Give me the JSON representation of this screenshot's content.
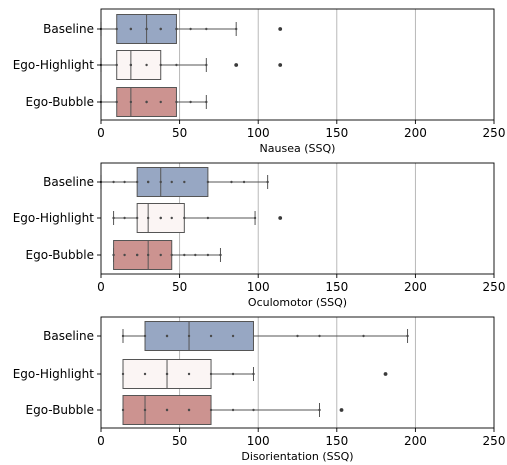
{
  "chart_data": [
    {
      "type": "boxplot",
      "xlabel": "Nausea (SSQ)",
      "xlim": [
        0,
        250
      ],
      "xticks": [
        0,
        50,
        100,
        150,
        200,
        250
      ],
      "grid": "vertical",
      "categories": [
        "Baseline",
        "Ego-Highlight",
        "Ego-Bubble"
      ],
      "boxes": [
        {
          "category": "Baseline",
          "color": "#97a7c3",
          "whisker_low": 0,
          "q1": 10,
          "median": 29,
          "q3": 48,
          "whisker_high": 86,
          "points": [
            0,
            10,
            19,
            19,
            29,
            29,
            38,
            38,
            48,
            48,
            57,
            67,
            86
          ],
          "outliers": [
            114
          ]
        },
        {
          "category": "Ego-Highlight",
          "color": "#fbf5f4",
          "whisker_low": 0,
          "q1": 10,
          "median": 19,
          "q3": 38,
          "whisker_high": 67,
          "points": [
            0,
            10,
            19,
            19,
            29,
            38,
            48,
            67
          ],
          "outliers": [
            86,
            114
          ]
        },
        {
          "category": "Ego-Bubble",
          "color": "#cc9390",
          "whisker_low": 0,
          "q1": 10,
          "median": 19,
          "q3": 48,
          "whisker_high": 67,
          "points": [
            0,
            10,
            19,
            29,
            29,
            38,
            48,
            57,
            67
          ],
          "outliers": []
        }
      ]
    },
    {
      "type": "boxplot",
      "xlabel": "Oculomotor (SSQ)",
      "xlim": [
        0,
        250
      ],
      "xticks": [
        0,
        50,
        100,
        150,
        200,
        250
      ],
      "grid": "vertical",
      "categories": [
        "Baseline",
        "Ego-Highlight",
        "Ego-Bubble"
      ],
      "boxes": [
        {
          "category": "Baseline",
          "color": "#97a7c3",
          "whisker_low": 0,
          "q1": 23,
          "median": 38,
          "q3": 68,
          "whisker_high": 106,
          "points": [
            0,
            8,
            15,
            23,
            30,
            30,
            38,
            45,
            53,
            68,
            83,
            91,
            106
          ],
          "outliers": []
        },
        {
          "category": "Ego-Highlight",
          "color": "#fbf5f4",
          "whisker_low": 8,
          "q1": 23,
          "median": 30,
          "q3": 53,
          "whisker_high": 98,
          "points": [
            8,
            15,
            23,
            30,
            38,
            38,
            45,
            53,
            68,
            98
          ],
          "outliers": [
            114
          ]
        },
        {
          "category": "Ego-Bubble",
          "color": "#cc9390",
          "whisker_low": 8,
          "q1": 8,
          "median": 30,
          "q3": 45,
          "whisker_high": 76,
          "points": [
            8,
            15,
            23,
            23,
            30,
            38,
            45,
            53,
            60,
            68,
            76
          ],
          "outliers": []
        }
      ]
    },
    {
      "type": "boxplot",
      "xlabel": "Disorientation (SSQ)",
      "xlim": [
        0,
        250
      ],
      "xticks": [
        0,
        50,
        100,
        150,
        200,
        250
      ],
      "grid": "vertical",
      "categories": [
        "Baseline",
        "Ego-Highlight",
        "Ego-Bubble"
      ],
      "boxes": [
        {
          "category": "Baseline",
          "color": "#97a7c3",
          "whisker_low": 14,
          "q1": 28,
          "median": 56,
          "q3": 97,
          "whisker_high": 195,
          "points": [
            14,
            28,
            42,
            42,
            56,
            70,
            84,
            125,
            139,
            167,
            195
          ],
          "outliers": []
        },
        {
          "category": "Ego-Highlight",
          "color": "#fbf5f4",
          "whisker_low": 14,
          "q1": 14,
          "median": 42,
          "q3": 70,
          "whisker_high": 97,
          "points": [
            14,
            28,
            42,
            42,
            56,
            70,
            84,
            97
          ],
          "outliers": [
            181
          ]
        },
        {
          "category": "Ego-Bubble",
          "color": "#cc9390",
          "whisker_low": 14,
          "q1": 14,
          "median": 28,
          "q3": 70,
          "whisker_high": 139,
          "points": [
            14,
            28,
            28,
            42,
            42,
            56,
            56,
            70,
            84,
            97,
            139
          ],
          "outliers": [
            153
          ]
        }
      ]
    }
  ]
}
